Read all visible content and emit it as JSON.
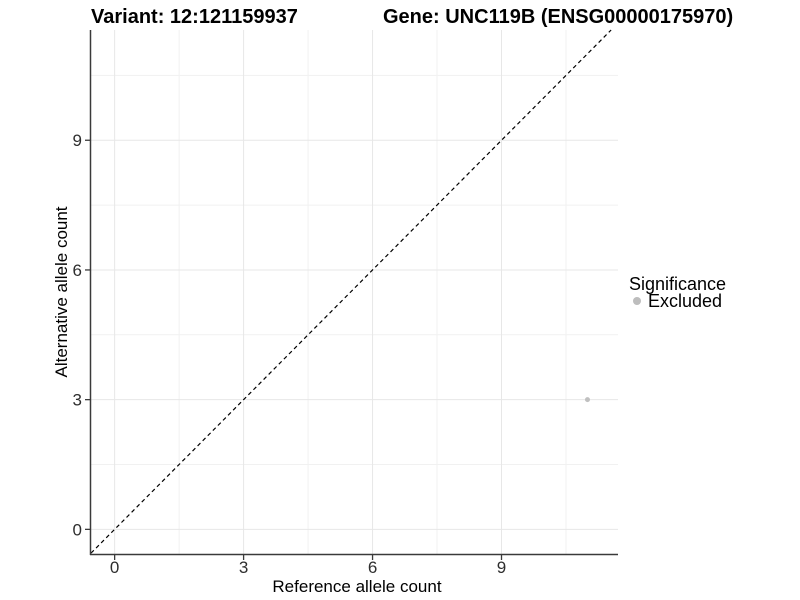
{
  "chart_data": {
    "type": "scatter",
    "title_left": "Variant: 12:121159937",
    "title_right": "Gene: UNC119B (ENSG00000175970)",
    "xlabel": "Reference allele count",
    "ylabel": "Alternative allele count",
    "xlim": [
      -0.55,
      11.71
    ],
    "ylim": [
      -0.57,
      11.55
    ],
    "x_ticks": [
      0,
      3,
      6,
      9
    ],
    "y_ticks": [
      0,
      3,
      6,
      9
    ],
    "x_minor_ticks": [
      1.5,
      4.5,
      7.5,
      10.5
    ],
    "y_minor_ticks": [
      1.5,
      4.5,
      7.5,
      10.5
    ],
    "grid": "major_and_minor",
    "identity_line": {
      "type": "y=x",
      "style": "dashed",
      "color": "#000000"
    },
    "series": [
      {
        "name": "Excluded",
        "color": "#c0c0c0",
        "points": [
          {
            "x": 11,
            "y": 3
          }
        ]
      }
    ],
    "legend": {
      "title": "Significance",
      "position": "right",
      "items": [
        {
          "label": "Excluded",
          "color": "#bdbdbd"
        }
      ]
    },
    "style": {
      "background": "#ffffff",
      "grid_major_color": "#e7e7e7",
      "grid_minor_color": "#f1f1f1",
      "axis_line_color": "#3a3a3a",
      "tick_mark_color": "#3a3a3a",
      "point_radius": 2.5,
      "legend_key_radius": 4
    }
  }
}
